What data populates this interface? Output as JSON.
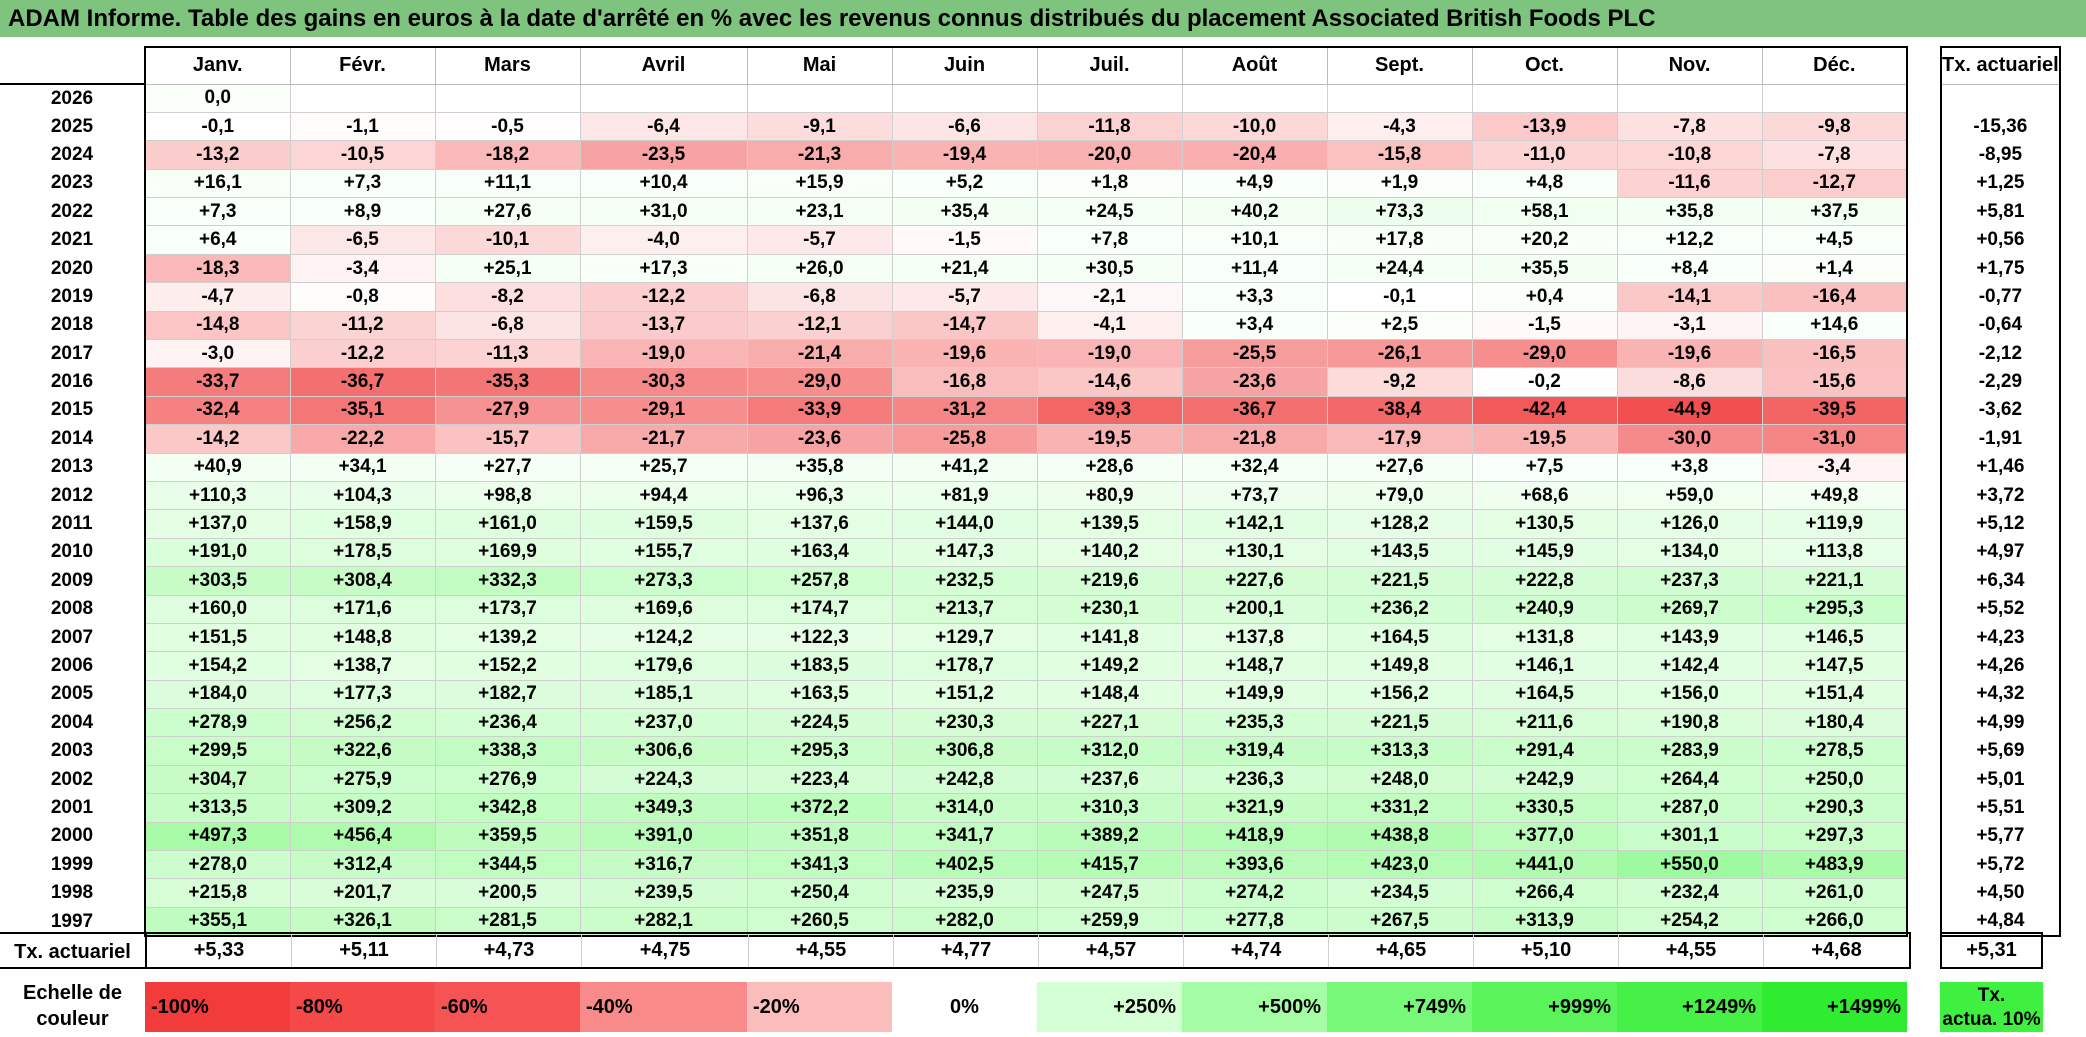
{
  "title": "ADAM Informe. Table des gains en euros à la date d'arrêté en % avec les revenus connus distribués du placement Associated British Foods PLC",
  "months": [
    "Janv.",
    "Févr.",
    "Mars",
    "Avril",
    "Mai",
    "Juin",
    "Juil.",
    "Août",
    "Sept.",
    "Oct.",
    "Nov.",
    "Déc."
  ],
  "tx_header": "Tx. actuariel",
  "rows": [
    {
      "year": "2026",
      "values": [
        "0,0",
        "",
        "",
        "",
        "",
        "",
        "",
        "",
        "",
        "",
        "",
        ""
      ],
      "tx": ""
    },
    {
      "year": "2025",
      "values": [
        "-0,1",
        "-1,1",
        "-0,5",
        "-6,4",
        "-9,1",
        "-6,6",
        "-11,8",
        "-10,0",
        "-4,3",
        "-13,9",
        "-7,8",
        "-9,8"
      ],
      "tx": "-15,36"
    },
    {
      "year": "2024",
      "values": [
        "-13,2",
        "-10,5",
        "-18,2",
        "-23,5",
        "-21,3",
        "-19,4",
        "-20,0",
        "-20,4",
        "-15,8",
        "-11,0",
        "-10,8",
        "-7,8"
      ],
      "tx": "-8,95"
    },
    {
      "year": "2023",
      "values": [
        "+16,1",
        "+7,3",
        "+11,1",
        "+10,4",
        "+15,9",
        "+5,2",
        "+1,8",
        "+4,9",
        "+1,9",
        "+4,8",
        "-11,6",
        "-12,7"
      ],
      "tx": "+1,25"
    },
    {
      "year": "2022",
      "values": [
        "+7,3",
        "+8,9",
        "+27,6",
        "+31,0",
        "+23,1",
        "+35,4",
        "+24,5",
        "+40,2",
        "+73,3",
        "+58,1",
        "+35,8",
        "+37,5"
      ],
      "tx": "+5,81"
    },
    {
      "year": "2021",
      "values": [
        "+6,4",
        "-6,5",
        "-10,1",
        "-4,0",
        "-5,7",
        "-1,5",
        "+7,8",
        "+10,1",
        "+17,8",
        "+20,2",
        "+12,2",
        "+4,5"
      ],
      "tx": "+0,56"
    },
    {
      "year": "2020",
      "values": [
        "-18,3",
        "-3,4",
        "+25,1",
        "+17,3",
        "+26,0",
        "+21,4",
        "+30,5",
        "+11,4",
        "+24,4",
        "+35,5",
        "+8,4",
        "+1,4"
      ],
      "tx": "+1,75"
    },
    {
      "year": "2019",
      "values": [
        "-4,7",
        "-0,8",
        "-8,2",
        "-12,2",
        "-6,8",
        "-5,7",
        "-2,1",
        "+3,3",
        "-0,1",
        "+0,4",
        "-14,1",
        "-16,4"
      ],
      "tx": "-0,77"
    },
    {
      "year": "2018",
      "values": [
        "-14,8",
        "-11,2",
        "-6,8",
        "-13,7",
        "-12,1",
        "-14,7",
        "-4,1",
        "+3,4",
        "+2,5",
        "-1,5",
        "-3,1",
        "+14,6"
      ],
      "tx": "-0,64"
    },
    {
      "year": "2017",
      "values": [
        "-3,0",
        "-12,2",
        "-11,3",
        "-19,0",
        "-21,4",
        "-19,6",
        "-19,0",
        "-25,5",
        "-26,1",
        "-29,0",
        "-19,6",
        "-16,5"
      ],
      "tx": "-2,12"
    },
    {
      "year": "2016",
      "values": [
        "-33,7",
        "-36,7",
        "-35,3",
        "-30,3",
        "-29,0",
        "-16,8",
        "-14,6",
        "-23,6",
        "-9,2",
        "-0,2",
        "-8,6",
        "-15,6"
      ],
      "tx": "-2,29"
    },
    {
      "year": "2015",
      "values": [
        "-32,4",
        "-35,1",
        "-27,9",
        "-29,1",
        "-33,9",
        "-31,2",
        "-39,3",
        "-36,7",
        "-38,4",
        "-42,4",
        "-44,9",
        "-39,5"
      ],
      "tx": "-3,62"
    },
    {
      "year": "2014",
      "values": [
        "-14,2",
        "-22,2",
        "-15,7",
        "-21,7",
        "-23,6",
        "-25,8",
        "-19,5",
        "-21,8",
        "-17,9",
        "-19,5",
        "-30,0",
        "-31,0"
      ],
      "tx": "-1,91"
    },
    {
      "year": "2013",
      "values": [
        "+40,9",
        "+34,1",
        "+27,7",
        "+25,7",
        "+35,8",
        "+41,2",
        "+28,6",
        "+32,4",
        "+27,6",
        "+7,5",
        "+3,8",
        "-3,4"
      ],
      "tx": "+1,46"
    },
    {
      "year": "2012",
      "values": [
        "+110,3",
        "+104,3",
        "+98,8",
        "+94,4",
        "+96,3",
        "+81,9",
        "+80,9",
        "+73,7",
        "+79,0",
        "+68,6",
        "+59,0",
        "+49,8"
      ],
      "tx": "+3,72"
    },
    {
      "year": "2011",
      "values": [
        "+137,0",
        "+158,9",
        "+161,0",
        "+159,5",
        "+137,6",
        "+144,0",
        "+139,5",
        "+142,1",
        "+128,2",
        "+130,5",
        "+126,0",
        "+119,9"
      ],
      "tx": "+5,12"
    },
    {
      "year": "2010",
      "values": [
        "+191,0",
        "+178,5",
        "+169,9",
        "+155,7",
        "+163,4",
        "+147,3",
        "+140,2",
        "+130,1",
        "+143,5",
        "+145,9",
        "+134,0",
        "+113,8"
      ],
      "tx": "+4,97"
    },
    {
      "year": "2009",
      "values": [
        "+303,5",
        "+308,4",
        "+332,3",
        "+273,3",
        "+257,8",
        "+232,5",
        "+219,6",
        "+227,6",
        "+221,5",
        "+222,8",
        "+237,3",
        "+221,1"
      ],
      "tx": "+6,34"
    },
    {
      "year": "2008",
      "values": [
        "+160,0",
        "+171,6",
        "+173,7",
        "+169,6",
        "+174,7",
        "+213,7",
        "+230,1",
        "+200,1",
        "+236,2",
        "+240,9",
        "+269,7",
        "+295,3"
      ],
      "tx": "+5,52"
    },
    {
      "year": "2007",
      "values": [
        "+151,5",
        "+148,8",
        "+139,2",
        "+124,2",
        "+122,3",
        "+129,7",
        "+141,8",
        "+137,8",
        "+164,5",
        "+131,8",
        "+143,9",
        "+146,5"
      ],
      "tx": "+4,23"
    },
    {
      "year": "2006",
      "values": [
        "+154,2",
        "+138,7",
        "+152,2",
        "+179,6",
        "+183,5",
        "+178,7",
        "+149,2",
        "+148,7",
        "+149,8",
        "+146,1",
        "+142,4",
        "+147,5"
      ],
      "tx": "+4,26"
    },
    {
      "year": "2005",
      "values": [
        "+184,0",
        "+177,3",
        "+182,7",
        "+185,1",
        "+163,5",
        "+151,2",
        "+148,4",
        "+149,9",
        "+156,2",
        "+164,5",
        "+156,0",
        "+151,4"
      ],
      "tx": "+4,32"
    },
    {
      "year": "2004",
      "values": [
        "+278,9",
        "+256,2",
        "+236,4",
        "+237,0",
        "+224,5",
        "+230,3",
        "+227,1",
        "+235,3",
        "+221,5",
        "+211,6",
        "+190,8",
        "+180,4"
      ],
      "tx": "+4,99"
    },
    {
      "year": "2003",
      "values": [
        "+299,5",
        "+322,6",
        "+338,3",
        "+306,6",
        "+295,3",
        "+306,8",
        "+312,0",
        "+319,4",
        "+313,3",
        "+291,4",
        "+283,9",
        "+278,5"
      ],
      "tx": "+5,69"
    },
    {
      "year": "2002",
      "values": [
        "+304,7",
        "+275,9",
        "+276,9",
        "+224,3",
        "+223,4",
        "+242,8",
        "+237,6",
        "+236,3",
        "+248,0",
        "+242,9",
        "+264,4",
        "+250,0"
      ],
      "tx": "+5,01"
    },
    {
      "year": "2001",
      "values": [
        "+313,5",
        "+309,2",
        "+342,8",
        "+349,3",
        "+372,2",
        "+314,0",
        "+310,3",
        "+321,9",
        "+331,2",
        "+330,5",
        "+287,0",
        "+290,3"
      ],
      "tx": "+5,51"
    },
    {
      "year": "2000",
      "values": [
        "+497,3",
        "+456,4",
        "+359,5",
        "+391,0",
        "+351,8",
        "+341,7",
        "+389,2",
        "+418,9",
        "+438,8",
        "+377,0",
        "+301,1",
        "+297,3"
      ],
      "tx": "+5,77"
    },
    {
      "year": "1999",
      "values": [
        "+278,0",
        "+312,4",
        "+344,5",
        "+316,7",
        "+341,3",
        "+402,5",
        "+415,7",
        "+393,6",
        "+423,0",
        "+441,0",
        "+550,0",
        "+483,9"
      ],
      "tx": "+5,72"
    },
    {
      "year": "1998",
      "values": [
        "+215,8",
        "+201,7",
        "+200,5",
        "+239,5",
        "+250,4",
        "+235,9",
        "+247,5",
        "+274,2",
        "+234,5",
        "+266,4",
        "+232,4",
        "+261,0"
      ],
      "tx": "+4,50"
    },
    {
      "year": "1997",
      "values": [
        "+355,1",
        "+326,1",
        "+281,5",
        "+282,1",
        "+260,5",
        "+282,0",
        "+259,9",
        "+277,8",
        "+267,5",
        "+313,9",
        "+254,2",
        "+266,0"
      ],
      "tx": "+4,84"
    }
  ],
  "totals": {
    "label": "Tx. actuariel",
    "values": [
      "+5,33",
      "+5,11",
      "+4,73",
      "+4,75",
      "+4,55",
      "+4,77",
      "+4,57",
      "+4,74",
      "+4,65",
      "+5,10",
      "+4,55",
      "+4,68"
    ],
    "tx": "+5,31"
  },
  "scale": {
    "label_line1": "Echelle de",
    "label_line2": "couleur",
    "steps": [
      {
        "text": "-100%",
        "color": "#f23c3c",
        "align": "left"
      },
      {
        "text": "-80%",
        "color": "#f54848",
        "align": "left"
      },
      {
        "text": "-60%",
        "color": "#f65454",
        "align": "left"
      },
      {
        "text": "-40%",
        "color": "#f98a8a",
        "align": "left"
      },
      {
        "text": "-20%",
        "color": "#fbbcbc",
        "align": "left"
      },
      {
        "text": "0%",
        "color": "#ffffff",
        "align": "center"
      },
      {
        "text": "+250%",
        "color": "#d4ffd4",
        "align": "right"
      },
      {
        "text": "+500%",
        "color": "#a4fca4",
        "align": "right"
      },
      {
        "text": "+749%",
        "color": "#78f878",
        "align": "right"
      },
      {
        "text": "+999%",
        "color": "#5af45a",
        "align": "right"
      },
      {
        "text": "+1249%",
        "color": "#46f046",
        "align": "right"
      },
      {
        "text": "+1499%",
        "color": "#30ec30",
        "align": "right"
      }
    ],
    "tx_line1": "Tx.",
    "tx_line2": "actua. 10%"
  }
}
